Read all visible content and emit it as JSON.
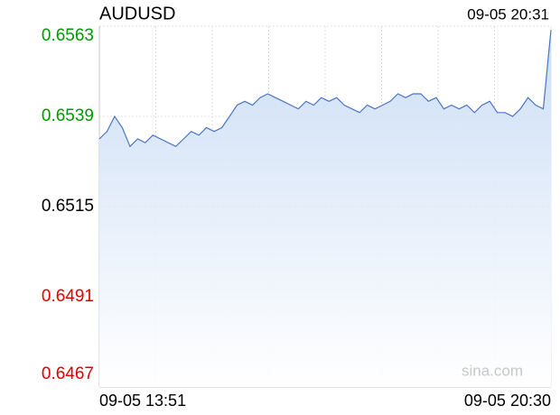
{
  "chart_data": {
    "type": "line",
    "title": "AUDUSD",
    "timestamp": "09-05 20:31",
    "watermark": "sina.com",
    "categories": [
      "09-05 13:51",
      null,
      null,
      null,
      null,
      null,
      null,
      null,
      null,
      null,
      null,
      null,
      null,
      null,
      null,
      null,
      null,
      null,
      null,
      null,
      null,
      null,
      null,
      null,
      null,
      null,
      null,
      null,
      null,
      null,
      null,
      null,
      null,
      null,
      null,
      null,
      null,
      null,
      null,
      null,
      null,
      null,
      null,
      null,
      null,
      null,
      null,
      null,
      null,
      null,
      null,
      null,
      null,
      null,
      null,
      null,
      null,
      null,
      null,
      "09-05 20:30"
    ],
    "series": [
      {
        "color": "#4a74c4",
        "values": [
          0.6533,
          0.6535,
          0.6539,
          0.6536,
          0.6531,
          0.6533,
          0.6532,
          0.6534,
          0.6533,
          0.6532,
          0.6531,
          0.6533,
          0.6535,
          0.6534,
          0.6536,
          0.6535,
          0.6536,
          0.6539,
          0.6542,
          0.6543,
          0.6542,
          0.6544,
          0.6545,
          0.6544,
          0.6543,
          0.6542,
          0.6541,
          0.6543,
          0.6542,
          0.6544,
          0.6543,
          0.6544,
          0.6542,
          0.6541,
          0.654,
          0.6542,
          0.6541,
          0.6542,
          0.6543,
          0.6545,
          0.6544,
          0.6545,
          0.6545,
          0.6543,
          0.6544,
          0.6541,
          0.6542,
          0.6541,
          0.6542,
          0.654,
          0.6542,
          0.6543,
          0.654,
          0.654,
          0.6539,
          0.6541,
          0.6544,
          0.6542,
          0.6541,
          0.6562
        ]
      }
    ],
    "ylim": [
      0.6467,
      0.6563
    ],
    "yticks": [
      0.6467,
      0.6491,
      0.6515,
      0.6539,
      0.6563
    ],
    "up_color": "#009900",
    "down_color": "#dd0000",
    "flat_color": "#000000",
    "grid": true
  }
}
